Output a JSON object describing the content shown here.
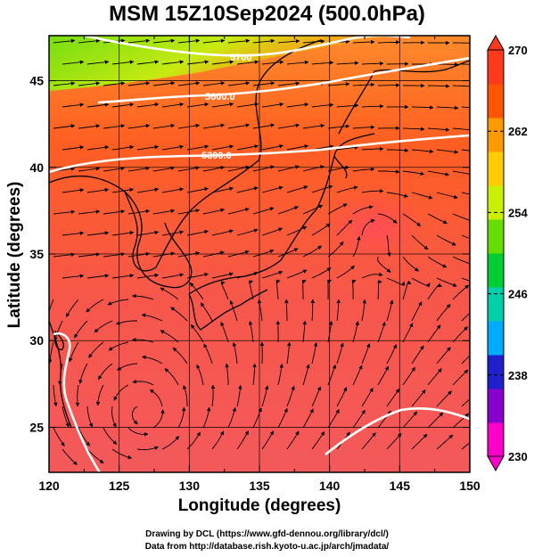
{
  "title": "MSM 15Z10Sep2024 (500.0hPa)",
  "axes": {
    "xlabel": "Longitude (degrees)",
    "ylabel": "Latitude  (degrees)",
    "xticks": [
      120,
      125,
      130,
      135,
      140,
      145,
      150
    ],
    "yticks": [
      25,
      30,
      35,
      40,
      45
    ],
    "xlim": [
      120,
      150
    ],
    "ylim": [
      22.4,
      47.6
    ]
  },
  "colorbar": {
    "min": 230,
    "max": 270,
    "tick_labels": [
      270,
      262,
      254,
      246,
      238,
      230
    ],
    "colors": [
      "#ff00cc",
      "#8800cc",
      "#1f1fcc",
      "#00aaff",
      "#00d0aa",
      "#00cc33",
      "#66dd00",
      "#ccee00",
      "#ffcc00",
      "#ff9900",
      "#ff5500",
      "#ff3a1c"
    ]
  },
  "contours": [
    {
      "label": "5700"
    },
    {
      "label": "5600.0"
    },
    {
      "label": "5300.0"
    }
  ],
  "credits": {
    "line1": "Drawing by DCL (https://www.gfd-dennou.org/library/dcl/)",
    "line2": "Data from http://database.rish.kyoto-u.ac.jp/arch/jmadata/"
  }
}
